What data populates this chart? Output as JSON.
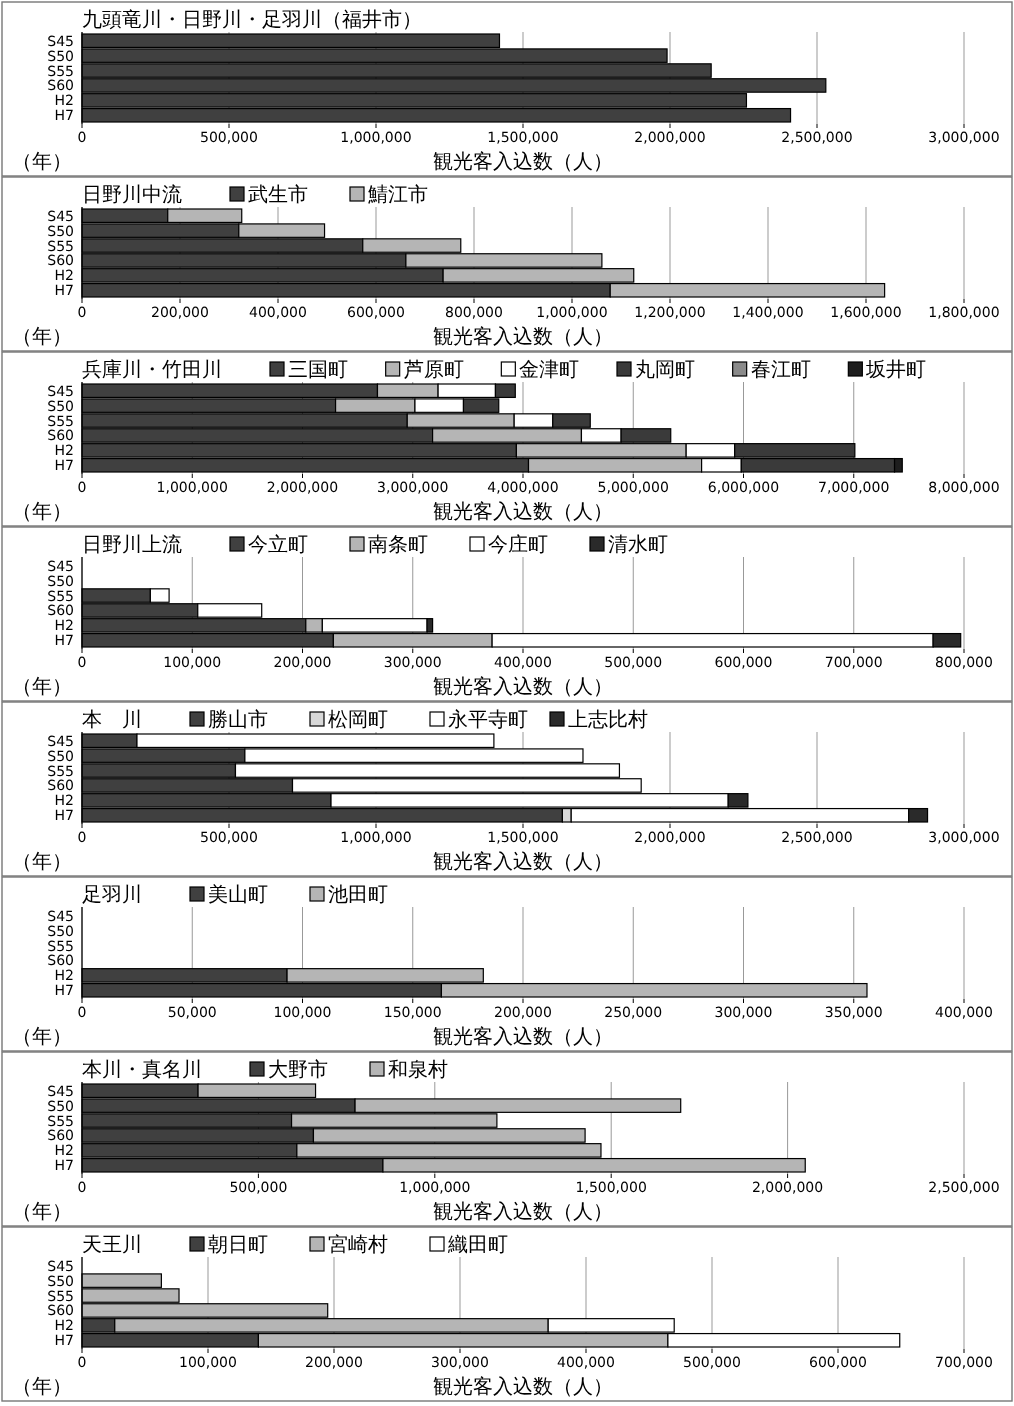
{
  "chart_data": [
    {
      "type": "bar",
      "orientation": "horizontal",
      "title": "九頭竜川・日野川・足羽川（福井市）",
      "xlabel": "観光客入込数（人）",
      "ylabel": "（年）",
      "categories": [
        "S45",
        "S50",
        "S55",
        "S60",
        "H2",
        "H7"
      ],
      "values": [
        1420000,
        1990000,
        2140000,
        2530000,
        2260000,
        2410000
      ],
      "color": "#404040",
      "xlim": [
        0,
        3000000
      ],
      "xticks": [
        {
          "value": 0,
          "label": "0"
        },
        {
          "value": 500000,
          "label": "500,000"
        },
        {
          "value": 1000000,
          "label": "1,000,000"
        },
        {
          "value": 1500000,
          "label": "1,500,000"
        },
        {
          "value": 2000000,
          "label": "2,000,000"
        },
        {
          "value": 2500000,
          "label": "2,500,000"
        },
        {
          "value": 3000000,
          "label": "3,000,000"
        }
      ],
      "grid": "x"
    },
    {
      "type": "bar",
      "orientation": "horizontal",
      "stacked": true,
      "title": "日野川中流",
      "xlabel": "観光客入込数（人）",
      "ylabel": "（年）",
      "categories": [
        "S45",
        "S50",
        "S55",
        "S60",
        "H2",
        "H7"
      ],
      "series": [
        {
          "name": "武生市",
          "color": "#404040",
          "values": [
            175000,
            320000,
            573000,
            661000,
            737000,
            1078000
          ]
        },
        {
          "name": "鯖江市",
          "color": "#b5b5b5",
          "values": [
            151000,
            175000,
            200000,
            400000,
            389000,
            560000
          ]
        }
      ],
      "xlim": [
        0,
        1800000
      ],
      "xticks": [
        {
          "value": 0,
          "label": "0"
        },
        {
          "value": 200000,
          "label": "200,000"
        },
        {
          "value": 400000,
          "label": "400,000"
        },
        {
          "value": 600000,
          "label": "600,000"
        },
        {
          "value": 800000,
          "label": "800,000"
        },
        {
          "value": 1000000,
          "label": "1,000,000"
        },
        {
          "value": 1200000,
          "label": "1,200,000"
        },
        {
          "value": 1400000,
          "label": "1,400,000"
        },
        {
          "value": 1600000,
          "label": "1,600,000"
        },
        {
          "value": 1800000,
          "label": "1,800,000"
        }
      ],
      "grid": "x",
      "legend": "top"
    },
    {
      "type": "bar",
      "orientation": "horizontal",
      "stacked": true,
      "title": "兵庫川・竹田川",
      "xlabel": "観光客入込数（人）",
      "ylabel": "（年）",
      "categories": [
        "S45",
        "S50",
        "S55",
        "S60",
        "H2",
        "H7"
      ],
      "series": [
        {
          "name": "三国町",
          "color": "#404040",
          "values": [
            2680000,
            2300000,
            2950000,
            3180000,
            3940000,
            4050000
          ]
        },
        {
          "name": "芦原町",
          "color": "#b5b5b5",
          "values": [
            550000,
            720000,
            970000,
            1350000,
            1540000,
            1570000
          ]
        },
        {
          "name": "金津町",
          "color": "#ffffff",
          "values": [
            520000,
            440000,
            350000,
            360000,
            440000,
            360000
          ]
        },
        {
          "name": "丸岡町",
          "color": "#3a3a3a",
          "values": [
            180000,
            320000,
            340000,
            450000,
            1090000,
            1390000
          ]
        },
        {
          "name": "春江町",
          "color": "#8a8a8a",
          "values": [
            null,
            null,
            null,
            null,
            null,
            null
          ]
        },
        {
          "name": "坂井町",
          "color": "#1e1e1e",
          "values": [
            null,
            null,
            null,
            null,
            null,
            70000
          ]
        }
      ],
      "xlim": [
        0,
        8000000
      ],
      "xticks": [
        {
          "value": 0,
          "label": "0"
        },
        {
          "value": 1000000,
          "label": "1,000,000"
        },
        {
          "value": 2000000,
          "label": "2,000,000"
        },
        {
          "value": 3000000,
          "label": "3,000,000"
        },
        {
          "value": 4000000,
          "label": "4,000,000"
        },
        {
          "value": 5000000,
          "label": "5,000,000"
        },
        {
          "value": 6000000,
          "label": "6,000,000"
        },
        {
          "value": 7000000,
          "label": "7,000,000"
        },
        {
          "value": 8000000,
          "label": "8,000,000"
        }
      ],
      "grid": "x",
      "legend": "top"
    },
    {
      "type": "bar",
      "orientation": "horizontal",
      "stacked": true,
      "title": "日野川上流",
      "xlabel": "観光客入込数（人）",
      "ylabel": "（年）",
      "categories": [
        "S45",
        "S50",
        "S55",
        "S60",
        "H2",
        "H7"
      ],
      "series": [
        {
          "name": "今立町",
          "color": "#404040",
          "values": [
            null,
            null,
            62000,
            105000,
            203000,
            228000
          ]
        },
        {
          "name": "南条町",
          "color": "#b5b5b5",
          "values": [
            null,
            null,
            null,
            null,
            15000,
            144000
          ]
        },
        {
          "name": "今庄町",
          "color": "#ffffff",
          "values": [
            null,
            null,
            17000,
            58000,
            95000,
            400000
          ]
        },
        {
          "name": "清水町",
          "color": "#2a2a2a",
          "values": [
            null,
            null,
            null,
            null,
            5000,
            25000
          ]
        }
      ],
      "xlim": [
        0,
        800000
      ],
      "xticks": [
        {
          "value": 0,
          "label": "0"
        },
        {
          "value": 100000,
          "label": "100,000"
        },
        {
          "value": 200000,
          "label": "200,000"
        },
        {
          "value": 300000,
          "label": "300,000"
        },
        {
          "value": 400000,
          "label": "400,000"
        },
        {
          "value": 500000,
          "label": "500,000"
        },
        {
          "value": 600000,
          "label": "600,000"
        },
        {
          "value": 700000,
          "label": "700,000"
        },
        {
          "value": 800000,
          "label": "800,000"
        }
      ],
      "grid": "x",
      "legend": "top"
    },
    {
      "type": "bar",
      "orientation": "horizontal",
      "stacked": true,
      "title": "本　川",
      "xlabel": "観光客入込数（人）",
      "ylabel": "（年）",
      "categories": [
        "S45",
        "S50",
        "S55",
        "S60",
        "H2",
        "H7"
      ],
      "series": [
        {
          "name": "勝山市",
          "color": "#404040",
          "values": [
            187000,
            554000,
            522000,
            716000,
            847000,
            1634000
          ]
        },
        {
          "name": "松岡町",
          "color": "#d8d8d8",
          "values": [
            null,
            null,
            null,
            null,
            null,
            30000
          ]
        },
        {
          "name": "永平寺町",
          "color": "#ffffff",
          "values": [
            1214000,
            1150000,
            1306000,
            1186000,
            1351000,
            1148000
          ]
        },
        {
          "name": "上志比村",
          "color": "#2a2a2a",
          "values": [
            null,
            null,
            null,
            null,
            67000,
            64000
          ]
        }
      ],
      "xlim": [
        0,
        3000000
      ],
      "xticks": [
        {
          "value": 0,
          "label": "0"
        },
        {
          "value": 500000,
          "label": "500,000"
        },
        {
          "value": 1000000,
          "label": "1,000,000"
        },
        {
          "value": 1500000,
          "label": "1,500,000"
        },
        {
          "value": 2000000,
          "label": "2,000,000"
        },
        {
          "value": 2500000,
          "label": "2,500,000"
        },
        {
          "value": 3000000,
          "label": "3,000,000"
        }
      ],
      "grid": "x",
      "legend": "top"
    },
    {
      "type": "bar",
      "orientation": "horizontal",
      "stacked": true,
      "title": "足羽川",
      "xlabel": "観光客入込数（人）",
      "ylabel": "（年）",
      "categories": [
        "S45",
        "S50",
        "S55",
        "S60",
        "H2",
        "H7"
      ],
      "series": [
        {
          "name": "美山町",
          "color": "#404040",
          "values": [
            null,
            null,
            null,
            null,
            93000,
            163000
          ]
        },
        {
          "name": "池田町",
          "color": "#b5b5b5",
          "values": [
            null,
            null,
            null,
            null,
            89000,
            193000
          ]
        }
      ],
      "xlim": [
        0,
        400000
      ],
      "xticks": [
        {
          "value": 0,
          "label": "0"
        },
        {
          "value": 50000,
          "label": "50,000"
        },
        {
          "value": 100000,
          "label": "100,000"
        },
        {
          "value": 150000,
          "label": "150,000"
        },
        {
          "value": 200000,
          "label": "200,000"
        },
        {
          "value": 250000,
          "label": "250,000"
        },
        {
          "value": 300000,
          "label": "300,000"
        },
        {
          "value": 350000,
          "label": "350,000"
        },
        {
          "value": 400000,
          "label": "400,000"
        }
      ],
      "grid": "x",
      "legend": "top"
    },
    {
      "type": "bar",
      "orientation": "horizontal",
      "stacked": true,
      "title": "本川・真名川",
      "xlabel": "観光客入込数（人）",
      "ylabel": "（年）",
      "categories": [
        "S45",
        "S50",
        "S55",
        "S60",
        "H2",
        "H7"
      ],
      "series": [
        {
          "name": "大野市",
          "color": "#404040",
          "values": [
            329000,
            774000,
            594000,
            656000,
            609000,
            853000
          ]
        },
        {
          "name": "和泉村",
          "color": "#b5b5b5",
          "values": [
            333000,
            923000,
            582000,
            770000,
            862000,
            1197000
          ]
        }
      ],
      "xlim": [
        0,
        2500000
      ],
      "xticks": [
        {
          "value": 0,
          "label": "0"
        },
        {
          "value": 500000,
          "label": "500,000"
        },
        {
          "value": 1000000,
          "label": "1,000,000"
        },
        {
          "value": 1500000,
          "label": "1,500,000"
        },
        {
          "value": 2000000,
          "label": "2,000,000"
        },
        {
          "value": 2500000,
          "label": "2,500,000"
        }
      ],
      "grid": "x",
      "legend": "top"
    },
    {
      "type": "bar",
      "orientation": "horizontal",
      "stacked": true,
      "title": "天王川",
      "xlabel": "観光客入込数（人）",
      "ylabel": "（年）",
      "categories": [
        "S45",
        "S50",
        "S55",
        "S60",
        "H2",
        "H7"
      ],
      "series": [
        {
          "name": "朝日町",
          "color": "#404040",
          "values": [
            null,
            null,
            null,
            null,
            26000,
            140000
          ]
        },
        {
          "name": "宮崎村",
          "color": "#b5b5b5",
          "values": [
            null,
            63000,
            77000,
            195000,
            344000,
            325000
          ]
        },
        {
          "name": "織田町",
          "color": "#ffffff",
          "values": [
            null,
            null,
            null,
            null,
            100000,
            184000
          ]
        }
      ],
      "xlim": [
        0,
        700000
      ],
      "xticks": [
        {
          "value": 0,
          "label": "0"
        },
        {
          "value": 100000,
          "label": "100,000"
        },
        {
          "value": 200000,
          "label": "200,000"
        },
        {
          "value": 300000,
          "label": "300,000"
        },
        {
          "value": 400000,
          "label": "400,000"
        },
        {
          "value": 500000,
          "label": "500,000"
        },
        {
          "value": 600000,
          "label": "600,000"
        },
        {
          "value": 700000,
          "label": "700,000"
        }
      ],
      "grid": "x",
      "legend": "top"
    }
  ]
}
